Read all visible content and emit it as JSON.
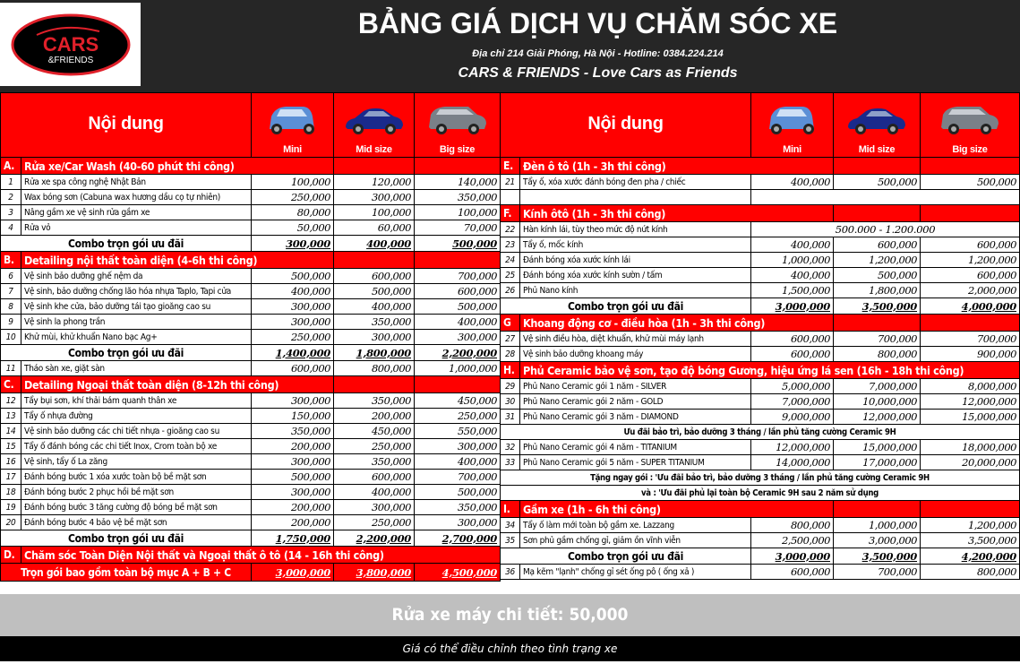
{
  "header": {
    "logo_text": "CARS & FRIENDS",
    "title": "BẢNG GIÁ DỊCH VỤ CHĂM SÓC XE",
    "address": "Địa chỉ 214 Giải Phóng, Hà Nội - Hotline: 0384.224.214",
    "slogan": "CARS & FRIENDS - Love Cars as Friends"
  },
  "columns": {
    "content": "Nội dung",
    "mini": "Mini",
    "mid": "Mid size",
    "big": "Big size"
  },
  "car_colors": {
    "mini": "#5b8fd6",
    "mid": "#1a2a8c",
    "big": "#7a8088"
  },
  "accent": "#ff0000",
  "left_rows": [
    {
      "t": "sec",
      "letter": "A.",
      "title": "Rửa xe/Car Wash (40-60 phút thi công)"
    },
    {
      "t": "item",
      "no": "1",
      "desc": "Rửa xe spa công nghệ Nhật Bản",
      "p": [
        "100,000",
        "120,000",
        "140,000"
      ]
    },
    {
      "t": "item",
      "no": "2",
      "desc": "Wax bóng sơn (Cabuna wax hương dầu cọ tự nhiên)",
      "p": [
        "250,000",
        "300,000",
        "350,000"
      ]
    },
    {
      "t": "item",
      "no": "3",
      "desc": "Nâng gầm xe vệ sinh rửa gầm xe",
      "p": [
        "80,000",
        "100,000",
        "100,000"
      ]
    },
    {
      "t": "item",
      "no": "4",
      "desc": "Rửa vỏ",
      "p": [
        "50,000",
        "60,000",
        "70,000"
      ]
    },
    {
      "t": "combo",
      "label": "Combo trọn gói ưu đãi",
      "p": [
        "300,000",
        "400,000",
        "500,000"
      ]
    },
    {
      "t": "sec",
      "letter": "B.",
      "title": "Detailing nội thất toàn diện (4-6h thi công)"
    },
    {
      "t": "item",
      "no": "6",
      "desc": "Vệ sinh bảo dưỡng ghế nệm da",
      "p": [
        "500,000",
        "600,000",
        "700,000"
      ]
    },
    {
      "t": "item",
      "no": "7",
      "desc": "Vệ sinh, bảo dưỡng chống lão hóa nhựa Taplo, Tapi cửa",
      "p": [
        "400,000",
        "500,000",
        "600,000"
      ]
    },
    {
      "t": "item",
      "no": "8",
      "desc": "Vệ sinh khe cửa, bảo dưỡng tái tạo gioăng cao su",
      "p": [
        "300,000",
        "400,000",
        "500,000"
      ]
    },
    {
      "t": "item",
      "no": "9",
      "desc": "Vệ sinh la phong trần",
      "p": [
        "300,000",
        "350,000",
        "400,000"
      ]
    },
    {
      "t": "item",
      "no": "10",
      "desc": "Khử mùi, khử khuẩn Nano bạc Ag+",
      "p": [
        "250,000",
        "300,000",
        "300,000"
      ]
    },
    {
      "t": "combo",
      "label": "Combo trọn gói ưu đãi",
      "p": [
        "1,400,000",
        "1,800,000",
        "2,200,000"
      ]
    },
    {
      "t": "item",
      "no": "11",
      "desc": "Tháo sàn xe, giặt sàn",
      "p": [
        "600,000",
        "800,000",
        "1,000,000"
      ]
    },
    {
      "t": "sec",
      "letter": "C.",
      "title": "Detailing Ngoại thất toàn diện (8-12h thi công)"
    },
    {
      "t": "item",
      "no": "12",
      "desc": "Tẩy bụi sơn, khí thải bám quanh thân xe",
      "p": [
        "300,000",
        "350,000",
        "450,000"
      ]
    },
    {
      "t": "item",
      "no": "13",
      "desc": "Tẩy ố nhựa đường",
      "p": [
        "150,000",
        "200,000",
        "250,000"
      ]
    },
    {
      "t": "item",
      "no": "14",
      "desc": "Vệ sinh bảo dưỡng các chi tiết nhựa - gioăng cao su",
      "p": [
        "350,000",
        "450,000",
        "550,000"
      ]
    },
    {
      "t": "item",
      "no": "15",
      "desc": "Tẩy ố đánh bóng các chi tiết Inox, Crom toàn bộ xe",
      "p": [
        "200,000",
        "250,000",
        "300,000"
      ]
    },
    {
      "t": "item",
      "no": "16",
      "desc": "Vệ sinh, tẩy ố La zăng",
      "p": [
        "300,000",
        "350,000",
        "400,000"
      ]
    },
    {
      "t": "item",
      "no": "17",
      "desc": "Đánh bóng bước 1 xóa xước toàn bộ bề mặt sơn",
      "p": [
        "500,000",
        "600,000",
        "700,000"
      ]
    },
    {
      "t": "item",
      "no": "18",
      "desc": "Đánh bóng bước 2 phục hồi bề mặt sơn",
      "p": [
        "300,000",
        "400,000",
        "500,000"
      ]
    },
    {
      "t": "item",
      "no": "19",
      "desc": "Đánh bóng bước 3 tăng cường độ bóng bề mặt sơn",
      "p": [
        "200,000",
        "300,000",
        "350,000"
      ]
    },
    {
      "t": "item",
      "no": "20",
      "desc": "Đánh bóng bước 4 bảo vệ bề mặt sơn",
      "p": [
        "200,000",
        "250,000",
        "300,000"
      ]
    },
    {
      "t": "combo",
      "label": "Combo trọn gói ưu đãi",
      "p": [
        "1,750,000",
        "2,200,000",
        "2,700,000"
      ]
    },
    {
      "t": "secwide",
      "letter": "D.",
      "title": "Chăm sóc Toàn Diện Nội thất và Ngoại thất ô tô (14 - 16h thi công)"
    },
    {
      "t": "total",
      "label": "Trọn gói bao gồm toàn bộ mục A + B + C",
      "p": [
        "3,000,000",
        "3,800,000",
        "4,500,000"
      ]
    }
  ],
  "right_rows": [
    {
      "t": "sec",
      "letter": "E.",
      "title": "Đèn ô tô  (1h - 3h thi công)"
    },
    {
      "t": "item",
      "no": "21",
      "desc": "Tẩy ố, xóa xước đánh bóng đen pha / chiếc",
      "p": [
        "400,000",
        "500,000",
        "500,000"
      ]
    },
    {
      "t": "blank"
    },
    {
      "t": "sec",
      "letter": "F.",
      "title": "Kính ôtô  (1h - 3h thi công)"
    },
    {
      "t": "item",
      "no": "22",
      "desc": "Hàn kính lái, tùy theo mức độ nứt kính",
      "span": "500.000 - 1.200.000"
    },
    {
      "t": "item",
      "no": "23",
      "desc": "Tẩy ố, mốc kính",
      "p": [
        "400,000",
        "600,000",
        "600,000"
      ]
    },
    {
      "t": "item",
      "no": "24",
      "desc": "Đánh bóng xóa xước kính lái",
      "p": [
        "1,000,000",
        "1,200,000",
        "1,200,000"
      ]
    },
    {
      "t": "item",
      "no": "25",
      "desc": "Đánh bóng xóa xước kính sườn / tấm",
      "p": [
        "400,000",
        "500,000",
        "600,000"
      ]
    },
    {
      "t": "item",
      "no": "26",
      "desc": "Phủ Nano kính",
      "p": [
        "1,500,000",
        "1,800,000",
        "2,000,000"
      ]
    },
    {
      "t": "combo",
      "label": "Combo trọn gói ưu đãi",
      "p": [
        "3,000,000",
        "3,500,000",
        "4,000,000"
      ]
    },
    {
      "t": "sec",
      "letter": "G",
      "title": "Khoang động cơ - điều hòa (1h - 3h thi công)"
    },
    {
      "t": "item",
      "no": "27",
      "desc": "Vệ sinh điều hòa, diệt khuẩn, khử mùi máy lạnh",
      "p": [
        "600,000",
        "700,000",
        "700,000"
      ]
    },
    {
      "t": "item",
      "no": "28",
      "desc": "Vệ sinh bảo dưỡng khoang máy",
      "p": [
        "600,000",
        "800,000",
        "900,000"
      ]
    },
    {
      "t": "secwide",
      "letter": "H.",
      "title": "Phủ Ceramic bảo vệ sơn, tạo độ bóng Gương, hiệu ứng lá sen (16h - 18h thi công)"
    },
    {
      "t": "item",
      "no": "29",
      "desc": "Phủ Nano Ceramic gói 1 năm - SILVER",
      "p": [
        "5,000,000",
        "7,000,000",
        "8,000,000"
      ]
    },
    {
      "t": "item",
      "no": "30",
      "desc": "Phủ Nano Ceramic gói 2 năm - GOLD",
      "p": [
        "7,000,000",
        "10,000,000",
        "12,000,000"
      ]
    },
    {
      "t": "item",
      "no": "31",
      "desc": "Phủ Nano Ceramic gói 3 năm - DIAMOND",
      "p": [
        "9,000,000",
        "12,000,000",
        "15,000,000"
      ]
    },
    {
      "t": "note",
      "text": "Ưu đãi bảo trì, bảo dưỡng 3 tháng / lần phủ tăng cường Ceramic 9H"
    },
    {
      "t": "item",
      "no": "32",
      "desc": "Phủ Nano Ceramic  gói 4 năm - TITANIUM",
      "p": [
        "12,000,000",
        "15,000,000",
        "18,000,000"
      ]
    },
    {
      "t": "item",
      "no": "33",
      "desc": "Phủ Nano Ceramic gói 5 năm - SUPER TITANIUM",
      "p": [
        "14,000,000",
        "17,000,000",
        "20,000,000"
      ]
    },
    {
      "t": "note",
      "text": "Tặng ngay gói  :  'Ưu đãi bảo trì, bảo dưỡng 3 tháng / lần phủ tăng cường Ceramic 9H"
    },
    {
      "t": "note",
      "text": "và  :  'Ưu đãi phủ lại toàn bộ Ceramic 9H sau 2 năm sử dụng"
    },
    {
      "t": "sec",
      "letter": "I.",
      "title": "Gầm xe (1h - 6h thi công)"
    },
    {
      "t": "item",
      "no": "34",
      "desc": "Tẩy ố làm mới toàn bộ gầm xe. Lazzang",
      "p": [
        "800,000",
        "1,000,000",
        "1,200,000"
      ]
    },
    {
      "t": "item",
      "no": "35",
      "desc": "Sơn phủ gầm chống gỉ, giảm ồn vĩnh viễn",
      "p": [
        "2,500,000",
        "3,000,000",
        "3,500,000"
      ]
    },
    {
      "t": "combo",
      "label": "Combo trọn gói ưu đãi",
      "p": [
        "3,000,000",
        "3,500,000",
        "4,200,000"
      ]
    },
    {
      "t": "item",
      "no": "36",
      "desc": "Mạ kẽm \"lạnh\" chống gỉ sét ống pô ( ống xả )",
      "p": [
        "600,000",
        "700,000",
        "800,000"
      ]
    }
  ],
  "footer": {
    "motorbike": "Rửa xe máy chi tiết: 50,000",
    "note": "Giá có thể điều chỉnh theo tình trạng xe"
  }
}
